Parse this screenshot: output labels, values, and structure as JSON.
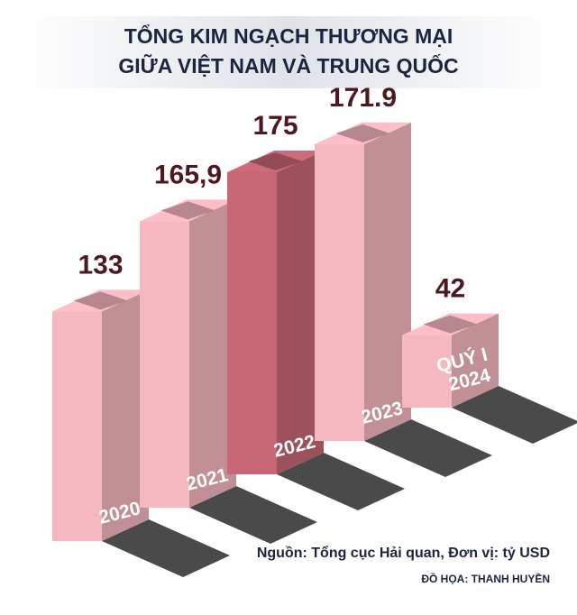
{
  "chart_data": {
    "type": "bar3d",
    "title": [
      "TỔNG KIM NGẠCH THƯƠNG MẠI",
      "GIỮA VIỆT NAM VÀ TRUNG QUỐC"
    ],
    "categories": [
      "2020",
      "2021",
      "2022",
      "2023",
      "QUÝ I 2024"
    ],
    "values": [
      133,
      165.9,
      175,
      171.9,
      42
    ],
    "value_labels": [
      "133",
      "165,9",
      "175",
      "171.9",
      "42"
    ],
    "colors": [
      "#e3a9b2",
      "#e3a9b2",
      "#b85f6d",
      "#e3a9b2",
      "#e3a9b2"
    ],
    "source": "Nguồn: Tổng cục Hải quan, Đơn vị: tỷ USD",
    "credit": "ĐỒ HỌA: THANH HUYỀN"
  }
}
